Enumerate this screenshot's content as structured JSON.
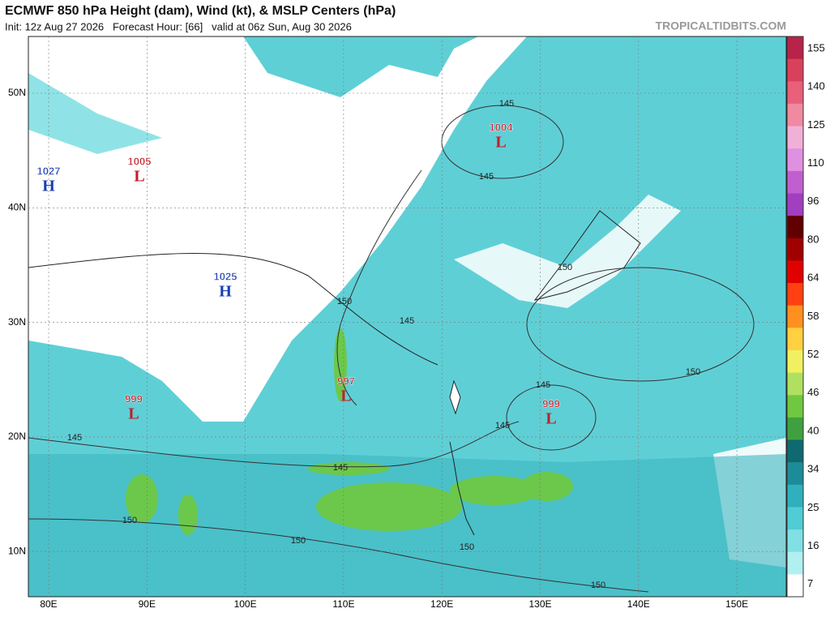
{
  "header": {
    "title": "ECMWF 850 hPa Height (dam), Wind (kt), & MSLP Centers (hPa)",
    "subtitle": "Init: 12z Aug 27 2026   Forecast Hour: [66]   valid at 06z Sun, Aug 30 2026",
    "brand": "TROPICALTIDBITS.COM"
  },
  "map": {
    "lon_labels": [
      "80E",
      "90E",
      "100E",
      "110E",
      "120E",
      "130E",
      "140E",
      "150E"
    ],
    "lat_labels": [
      "50N",
      "40N",
      "30N",
      "20N",
      "10N"
    ],
    "pressure_centers": [
      {
        "value": "1027",
        "letter": "H"
      },
      {
        "value": "1005",
        "letter": "L"
      },
      {
        "value": "1025",
        "letter": "H"
      },
      {
        "value": "1004",
        "letter": "L"
      },
      {
        "value": "997",
        "letter": "L"
      },
      {
        "value": "999",
        "letter": "L"
      },
      {
        "value": "999",
        "letter": "L"
      }
    ],
    "contour_labels": [
      "145",
      "145",
      "145",
      "145",
      "145",
      "145",
      "145",
      "150",
      "150",
      "150",
      "150",
      "150",
      "150",
      "150"
    ]
  },
  "colorbar": {
    "labels": [
      "155",
      "140",
      "125",
      "110",
      "96",
      "80",
      "64",
      "58",
      "52",
      "46",
      "40",
      "34",
      "25",
      "16",
      "7"
    ]
  }
}
